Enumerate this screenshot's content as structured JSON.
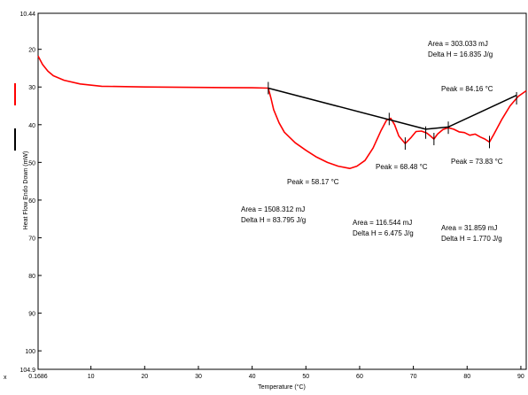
{
  "chart_data": {
    "type": "line",
    "title": "",
    "xlabel": "Temperature (°C)",
    "ylabel": "Heat Flow Endo Down (mW)",
    "xlim": [
      0.1686,
      91
    ],
    "ylim": [
      10.44,
      104.9
    ],
    "y_inverted": true,
    "x_ticks": [
      "0.1686",
      "10",
      "20",
      "30",
      "40",
      "50",
      "60",
      "70",
      "80",
      "90"
    ],
    "x_tick_values": [
      0.1686,
      10,
      20,
      30,
      40,
      50,
      60,
      70,
      80,
      90
    ],
    "y_ticks": [
      "10.44",
      "20",
      "30",
      "40",
      "50",
      "60",
      "70",
      "80",
      "90",
      "100",
      "104.9"
    ],
    "y_tick_values": [
      10.44,
      20,
      30,
      40,
      50,
      60,
      70,
      80,
      90,
      100,
      104.9
    ],
    "grid": false,
    "series": [
      {
        "color": "#ff0000",
        "x": [
          0.1686,
          1,
          2,
          3,
          5,
          8,
          12,
          20,
          30,
          40,
          43,
          43.5,
          44,
          45,
          46,
          48,
          50,
          52,
          54,
          56,
          58.17,
          59.5,
          61,
          62.5,
          64,
          65,
          65.8,
          66.5,
          67.3,
          68.48,
          69.5,
          70.5,
          71.5,
          72.5,
          73.2,
          73.83,
          74.5,
          75.5,
          76.5,
          77.5,
          78.5,
          79.5,
          80.5,
          81.5,
          82.5,
          83.3,
          84.16,
          85,
          86.5,
          88,
          89.5,
          91
        ],
        "y": [
          21.8,
          24.0,
          25.8,
          27.0,
          28.2,
          29.2,
          29.8,
          30.0,
          30.1,
          30.2,
          30.3,
          33.0,
          36.0,
          39.5,
          42.0,
          44.8,
          46.8,
          48.6,
          50.0,
          51.0,
          51.6,
          51.0,
          49.5,
          46.2,
          41.5,
          38.8,
          38.3,
          40.0,
          43.0,
          45.0,
          43.5,
          41.8,
          41.7,
          42.2,
          43.0,
          43.8,
          42.5,
          41.3,
          40.8,
          41.2,
          41.9,
          42.1,
          42.8,
          42.5,
          43.3,
          43.8,
          44.6,
          42.5,
          38.5,
          35.0,
          32.5,
          31.0
        ]
      },
      {
        "color": "#000000",
        "x": [
          43,
          72.3,
          76.5,
          89.2
        ],
        "y": [
          30.3,
          41.2,
          40.6,
          32.2
        ]
      }
    ],
    "annotations": [
      {
        "text": "Area = 303.033 mJ"
      },
      {
        "text": "Delta H = 16.835 J/g"
      },
      {
        "text": "Peak = 84.16 °C"
      },
      {
        "text": "Peak = 68.48 °C"
      },
      {
        "text": "Peak = 73.83 °C"
      },
      {
        "text": "Peak = 58.17 °C"
      },
      {
        "text": "Area = 1508.312 mJ"
      },
      {
        "text": "Delta H = 83.795 J/g"
      },
      {
        "text": "Area = 116.544 mJ"
      },
      {
        "text": "Delta H = 6.475 J/g"
      },
      {
        "text": "Area = 31.859 mJ"
      },
      {
        "text": "Delta H = 1.770 J/g"
      }
    ],
    "tick_marks_on_curve": [
      43,
      65.5,
      68.48,
      72.3,
      73.83,
      76.5,
      84.16,
      89.2
    ],
    "corner_label": "x"
  },
  "colors": {
    "frame_border": "#000000",
    "background": "#ffffff",
    "curve": "#ff0000",
    "baseline": "#000000"
  }
}
